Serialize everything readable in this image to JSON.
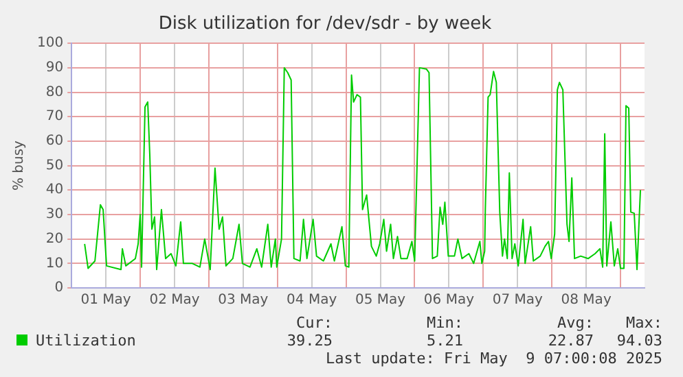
{
  "chart_data": {
    "type": "line",
    "title": "Disk utilization for /dev/sdr - by week",
    "ylabel": "% busy",
    "x": [
      "2025-05-01T04:34",
      "2025-05-01T05:46",
      "2025-05-01T08:10",
      "2025-05-01T10:05",
      "2025-05-01T11:02",
      "2025-05-01T12:14",
      "2025-05-01T17:17",
      "2025-05-01T17:46",
      "2025-05-01T18:58",
      "2025-05-01T22:19",
      "2025-05-01T23:17",
      "2025-05-02T00:00",
      "2025-05-02T00:29",
      "2025-05-02T01:41",
      "2025-05-02T02:38",
      "2025-05-02T03:22",
      "2025-05-02T04:05",
      "2025-05-02T05:02",
      "2025-05-02T05:46",
      "2025-05-02T07:26",
      "2025-05-02T08:53",
      "2025-05-02T10:48",
      "2025-05-02T12:29",
      "2025-05-02T14:10",
      "2025-05-02T15:07",
      "2025-05-02T18:14",
      "2025-05-02T20:53",
      "2025-05-02T22:34",
      "2025-05-03T00:29",
      "2025-05-03T02:10",
      "2025-05-03T03:36",
      "2025-05-03T04:48",
      "2025-05-03T06:00",
      "2025-05-03T08:24",
      "2025-05-03T10:34",
      "2025-05-03T11:46",
      "2025-05-03T14:24",
      "2025-05-03T16:48",
      "2025-05-03T18:29",
      "2025-05-03T20:38",
      "2025-05-03T21:50",
      "2025-05-03T23:17",
      "2025-05-03T23:46",
      "2025-05-04T01:26",
      "2025-05-04T02:24",
      "2025-05-04T03:36",
      "2025-05-04T04:48",
      "2025-05-04T05:46",
      "2025-05-04T07:55",
      "2025-05-04T09:07",
      "2025-05-04T10:19",
      "2025-05-04T12:29",
      "2025-05-04T13:41",
      "2025-05-04T16:05",
      "2025-05-04T18:43",
      "2025-05-04T19:55",
      "2025-05-04T22:34",
      "2025-05-04T23:46",
      "2025-05-05T00:58",
      "2025-05-05T01:55",
      "2025-05-05T02:38",
      "2025-05-05T03:50",
      "2025-05-05T05:02",
      "2025-05-05T05:46",
      "2025-05-05T07:12",
      "2025-05-05T08:53",
      "2025-05-05T10:34",
      "2025-05-05T11:46",
      "2025-05-05T13:12",
      "2025-05-05T14:10",
      "2025-05-05T15:36",
      "2025-05-05T16:34",
      "2025-05-05T18:00",
      "2025-05-05T19:12",
      "2025-05-05T21:22",
      "2025-05-05T23:02",
      "2025-05-06T00:00",
      "2025-05-06T01:41",
      "2025-05-06T04:05",
      "2025-05-06T05:02",
      "2025-05-06T06:14",
      "2025-05-06T07:55",
      "2025-05-06T08:53",
      "2025-05-06T09:50",
      "2025-05-06T10:34",
      "2025-05-06T11:46",
      "2025-05-06T13:55",
      "2025-05-06T15:07",
      "2025-05-06T16:34",
      "2025-05-06T18:58",
      "2025-05-06T20:38",
      "2025-05-06T22:48",
      "2025-05-06T23:31",
      "2025-05-07T00:29",
      "2025-05-07T00:43",
      "2025-05-07T01:41",
      "2025-05-07T02:24",
      "2025-05-07T03:36",
      "2025-05-07T04:34",
      "2025-05-07T05:46",
      "2025-05-07T06:43",
      "2025-05-07T07:26",
      "2025-05-07T08:24",
      "2025-05-07T09:07",
      "2025-05-07T10:05",
      "2025-05-07T11:02",
      "2025-05-07T12:14",
      "2025-05-07T13:55",
      "2025-05-07T14:38",
      "2025-05-07T16:34",
      "2025-05-07T17:31",
      "2025-05-07T19:55",
      "2025-05-07T21:36",
      "2025-05-07T22:48",
      "2025-05-07T23:46",
      "2025-05-08T00:58",
      "2025-05-08T01:55",
      "2025-05-08T02:38",
      "2025-05-08T03:50",
      "2025-05-08T05:17",
      "2025-05-08T06:00",
      "2025-05-08T06:58",
      "2025-05-08T07:55",
      "2025-05-08T10:05",
      "2025-05-08T12:43",
      "2025-05-08T15:07",
      "2025-05-08T16:48",
      "2025-05-08T17:46",
      "2025-05-08T18:29",
      "2025-05-08T19:12",
      "2025-05-08T20:38",
      "2025-05-08T21:50",
      "2025-05-08T23:02",
      "2025-05-09T00:00",
      "2025-05-09T01:12",
      "2025-05-09T01:55",
      "2025-05-09T02:53",
      "2025-05-09T03:36",
      "2025-05-09T04:48",
      "2025-05-09T05:46",
      "2025-05-09T06:58"
    ],
    "series": [
      {
        "name": "Utilization",
        "color": "#00cc00",
        "values": [
          18,
          8,
          11,
          34,
          32,
          9,
          7.5,
          16,
          9,
          12,
          18,
          30,
          8.5,
          74,
          76,
          54,
          24,
          29,
          7.5,
          32,
          12,
          14,
          9,
          27,
          10,
          10,
          8.5,
          20,
          7.5,
          49,
          24,
          29,
          9,
          12,
          26,
          10,
          8.5,
          16,
          8.5,
          26,
          8.5,
          20,
          8.5,
          20,
          90,
          88,
          85,
          12,
          11,
          28,
          12,
          28,
          13,
          11,
          18,
          11,
          25,
          9,
          8.5,
          87,
          76,
          79,
          78,
          32,
          38,
          17,
          13,
          18,
          28,
          15,
          26,
          12,
          21,
          12,
          12,
          19,
          11,
          90,
          89.5,
          88,
          12,
          13,
          33,
          26,
          35,
          13,
          13,
          20,
          12,
          14,
          10,
          19,
          10,
          15,
          32,
          78,
          79,
          88.5,
          84,
          31,
          13,
          20,
          12,
          47,
          12,
          18,
          9,
          28,
          10,
          25,
          11,
          13,
          17,
          19,
          12,
          22,
          81,
          84,
          81,
          26,
          19,
          45,
          12,
          13,
          12,
          14,
          16,
          8.5,
          63,
          9,
          27,
          9,
          16,
          8,
          8,
          74.5,
          73.5,
          31,
          30.5,
          7.5,
          40
        ]
      }
    ],
    "xlim": [
      "2025-05-01T00:00",
      "2025-05-09T08:24"
    ],
    "xticks": [
      {
        "value": "2025-05-01T12:00",
        "label": "01 May"
      },
      {
        "value": "2025-05-02T00:00",
        "label": null
      },
      {
        "value": "2025-05-02T12:00",
        "label": "02 May"
      },
      {
        "value": "2025-05-03T00:00",
        "label": null
      },
      {
        "value": "2025-05-03T12:00",
        "label": "03 May"
      },
      {
        "value": "2025-05-04T00:00",
        "label": null
      },
      {
        "value": "2025-05-04T12:00",
        "label": "04 May"
      },
      {
        "value": "2025-05-05T00:00",
        "label": null
      },
      {
        "value": "2025-05-05T12:00",
        "label": "05 May"
      },
      {
        "value": "2025-05-06T00:00",
        "label": null
      },
      {
        "value": "2025-05-06T12:00",
        "label": "06 May"
      },
      {
        "value": "2025-05-07T00:00",
        "label": null
      },
      {
        "value": "2025-05-07T12:00",
        "label": "07 May"
      },
      {
        "value": "2025-05-08T00:00",
        "label": null
      },
      {
        "value": "2025-05-08T12:00",
        "label": "08 May"
      },
      {
        "value": "2025-05-09T00:00",
        "label": null
      }
    ],
    "ylim": [
      0,
      100
    ],
    "yticks": [
      0,
      10,
      20,
      30,
      40,
      50,
      60,
      70,
      80,
      90,
      100
    ],
    "grid": true,
    "legend": "bottom",
    "marker": "none",
    "line_style": "solid",
    "annotations": [
      "Cur:",
      "Min:",
      "Avg:",
      "Max:",
      "39.25",
      "5.21",
      "22.87",
      "94.03",
      "Last update: Fri May  9 07:00:08 2025"
    ]
  }
}
